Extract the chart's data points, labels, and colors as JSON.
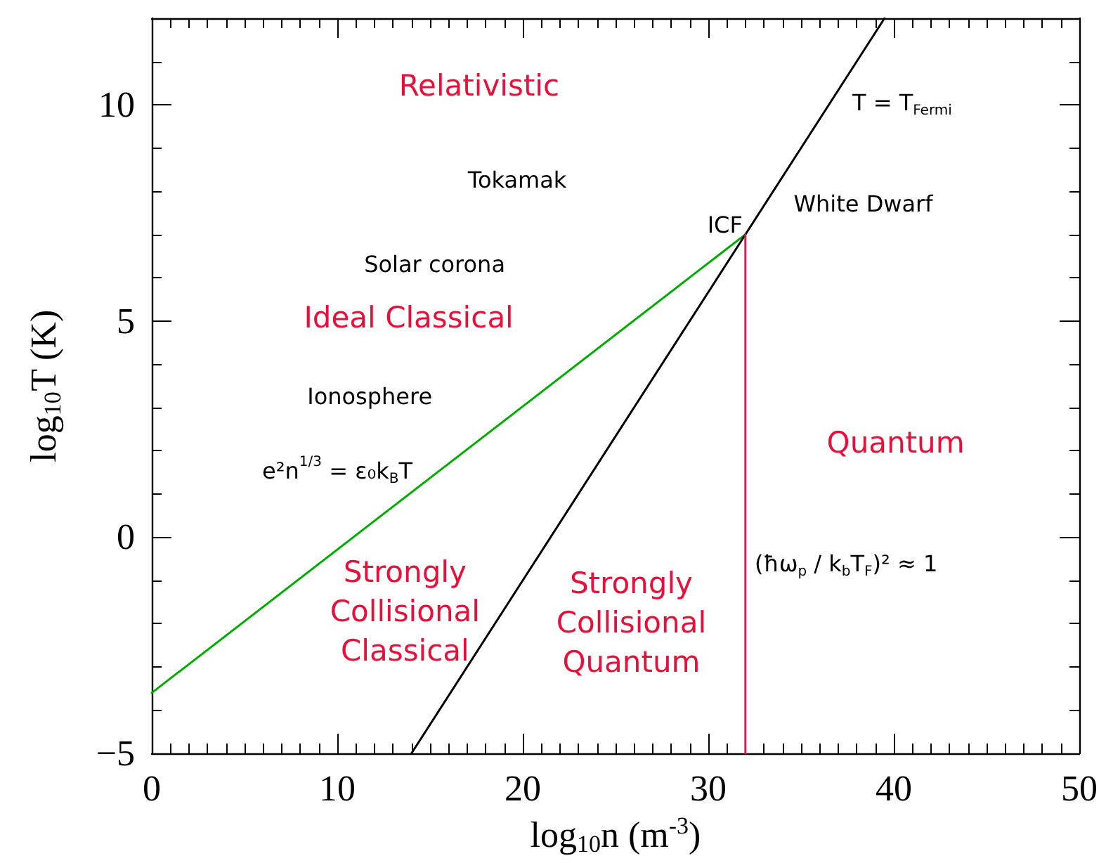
{
  "chart_data": {
    "type": "line",
    "xlabel": "log$_{10}$n (m$^{-3}$)",
    "ylabel": "log$_{10}$T (K)",
    "xlim": [
      0,
      50
    ],
    "xticks": [
      0,
      10,
      20,
      30,
      40,
      50
    ],
    "ylim": [
      -5,
      12
    ],
    "yticks": [
      -5,
      0,
      5,
      10
    ],
    "grid": false,
    "marker": "none",
    "line_style": "solid",
    "series": [
      {
        "color": "#00aa00",
        "x": [
          0,
          32
        ],
        "values": [
          -3.6,
          7
        ]
      },
      {
        "color": "#000000",
        "x": [
          14,
          39.5
        ],
        "values": [
          -5,
          12
        ]
      },
      {
        "color": "#ee1155",
        "x": [
          32,
          32
        ],
        "values": [
          -5,
          7
        ]
      }
    ],
    "annotations": [
      "Relativistic",
      "Ideal Classical",
      "Quantum",
      "Strongly\nCollisional\nClassical",
      "Strongly\nCollisional\nQuantum",
      "Tokamak",
      "Solar corona",
      "Ionosphere",
      "ICF",
      "White Dwarf",
      "T = T$_{Fermi}$",
      "e²n$^{1/3}$ = ε₀k$_{B}$T",
      "(ħω$_{p}$ / k$_{b}$T$_{F}$)² ≈ 1"
    ]
  }
}
